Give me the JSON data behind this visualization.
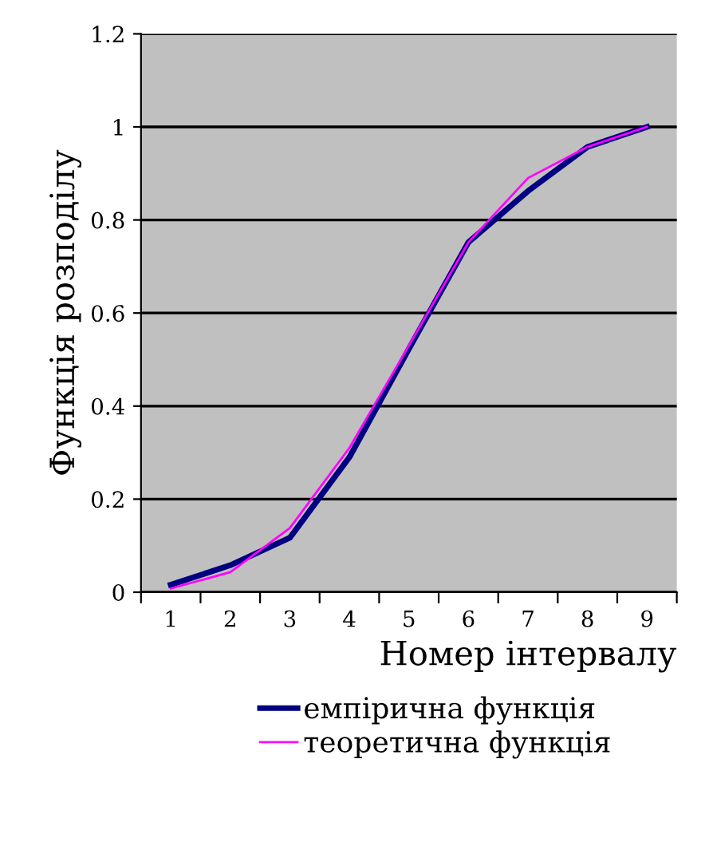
{
  "chart_data": {
    "type": "line",
    "xlabel": "Номер інтервалу",
    "ylabel": "Функція розподілу",
    "categories": [
      "1",
      "2",
      "3",
      "4",
      "5",
      "6",
      "7",
      "8",
      "9"
    ],
    "series": [
      {
        "name": "емпірична функція",
        "color": "#000080",
        "values": [
          0.016,
          0.058,
          0.117,
          0.29,
          0.523,
          0.752,
          0.862,
          0.957,
          1.0
        ]
      },
      {
        "name": "теоретична функція",
        "color": "#ff00ff",
        "values": [
          0.008,
          0.043,
          0.138,
          0.31,
          0.53,
          0.752,
          0.89,
          0.957,
          1.0
        ]
      }
    ],
    "ylim": [
      0,
      1.2
    ],
    "yticks": [
      0,
      0.2,
      0.4,
      0.6,
      0.8,
      1,
      1.2
    ],
    "grid": "y",
    "legend": "bottom",
    "marker": "none",
    "line_style": "solid"
  }
}
